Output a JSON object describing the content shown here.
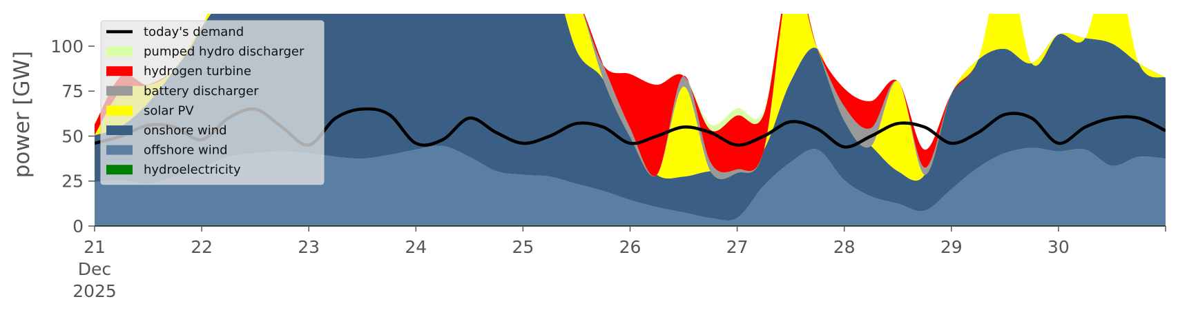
{
  "chart_data": {
    "type": "area",
    "ylabel": "power [GW]",
    "xlabel": "",
    "title": "",
    "ylim": [
      0,
      118
    ],
    "xlim": [
      "2025-12-21T00:00",
      "2025-12-31T00:00"
    ],
    "yticks": [
      0,
      25,
      50,
      75,
      100
    ],
    "ytick_labels": [
      "0",
      "25",
      "50",
      "75",
      "100"
    ],
    "xticks": [
      "2025-12-21",
      "2025-12-22",
      "2025-12-23",
      "2025-12-24",
      "2025-12-25",
      "2025-12-26",
      "2025-12-27",
      "2025-12-28",
      "2025-12-29",
      "2025-12-30"
    ],
    "xtick_labels": [
      "21\nDec\n2025",
      "22",
      "23",
      "24",
      "25",
      "26",
      "27",
      "28",
      "29",
      "30"
    ],
    "grid": false,
    "legend_position": "top-left",
    "x": [
      "2025-12-21T00:00",
      "2025-12-21T06:00",
      "2025-12-21T12:00",
      "2025-12-21T18:00",
      "2025-12-22T00:00",
      "2025-12-22T06:00",
      "2025-12-22T12:00",
      "2025-12-22T18:00",
      "2025-12-23T00:00",
      "2025-12-23T06:00",
      "2025-12-23T12:00",
      "2025-12-23T18:00",
      "2025-12-24T00:00",
      "2025-12-24T06:00",
      "2025-12-24T12:00",
      "2025-12-24T18:00",
      "2025-12-25T00:00",
      "2025-12-25T06:00",
      "2025-12-25T12:00",
      "2025-12-25T18:00",
      "2025-12-26T00:00",
      "2025-12-26T06:00",
      "2025-12-26T12:00",
      "2025-12-26T18:00",
      "2025-12-27T00:00",
      "2025-12-27T06:00",
      "2025-12-27T12:00",
      "2025-12-27T18:00",
      "2025-12-28T00:00",
      "2025-12-28T06:00",
      "2025-12-28T12:00",
      "2025-12-28T18:00",
      "2025-12-29T00:00",
      "2025-12-29T06:00",
      "2025-12-29T12:00",
      "2025-12-29T18:00",
      "2025-12-30T00:00",
      "2025-12-30T06:00",
      "2025-12-30T12:00",
      "2025-12-30T18:00",
      "2025-12-31T00:00"
    ],
    "series": [
      {
        "name": "hydroelectricity",
        "color": "#008000",
        "values": [
          0.5,
          0.5,
          0.5,
          0.5,
          0.5,
          0.5,
          0.5,
          0.5,
          0.5,
          0.5,
          0.5,
          0.5,
          0.5,
          0.5,
          0.5,
          0.5,
          0.5,
          0.5,
          0.5,
          0.5,
          0.5,
          0.5,
          0.5,
          0.5,
          0.5,
          0.5,
          0.5,
          0.5,
          0.5,
          0.5,
          0.5,
          0.5,
          0.5,
          0.5,
          0.5,
          0.5,
          0.5,
          0.5,
          0.5,
          0.5,
          0.5
        ]
      },
      {
        "name": "offshore wind",
        "color": "#5B7FA3",
        "values": [
          24,
          25,
          23,
          27,
          32,
          38,
          40,
          41,
          40,
          38,
          37,
          39,
          42,
          44,
          38,
          30,
          28,
          27,
          23,
          19,
          14,
          10,
          7,
          4,
          4,
          22,
          35,
          42,
          25,
          16,
          12,
          8,
          20,
          32,
          40,
          43,
          41,
          42,
          33,
          38,
          37
        ]
      },
      {
        "name": "onshore wind",
        "color": "#3B5F84",
        "values": [
          26,
          30,
          45,
          60,
          78,
          92,
          100,
          105,
          115,
          125,
          140,
          125,
          112,
          104,
          118,
          115,
          125,
          117,
          74,
          62,
          35,
          18,
          20,
          26,
          25,
          20,
          45,
          56,
          33,
          28,
          18,
          20,
          53,
          60,
          58,
          47,
          65,
          62,
          68,
          52,
          45
        ]
      },
      {
        "name": "solar PV",
        "color": "#FFFF00",
        "values": [
          0,
          20,
          10,
          0,
          0,
          15,
          0,
          0,
          0,
          10,
          0,
          0,
          0,
          0,
          15,
          0,
          0,
          0,
          30,
          0,
          0,
          0,
          50,
          0,
          0,
          0,
          60,
          0,
          0,
          0,
          50,
          0,
          0,
          0,
          50,
          0,
          0,
          0,
          50,
          0,
          0
        ]
      },
      {
        "name": "battery discharger",
        "color": "#999999",
        "values": [
          0,
          0,
          0,
          0,
          0,
          0,
          0,
          0,
          0,
          0,
          0,
          0,
          0,
          0,
          0,
          0,
          0,
          0,
          0,
          8,
          5,
          0,
          6,
          5,
          2,
          0,
          0,
          0,
          8,
          10,
          0,
          4,
          0,
          0,
          0,
          0,
          0,
          0,
          0,
          0,
          0
        ]
      },
      {
        "name": "hydrogen turbine",
        "color": "#FF0000",
        "values": [
          6,
          8,
          0,
          0,
          0,
          0,
          0,
          0,
          0,
          0,
          0,
          0,
          0,
          0,
          0,
          0,
          0,
          0,
          0,
          0,
          30,
          50,
          0,
          18,
          30,
          20,
          0,
          0,
          10,
          15,
          0,
          10,
          0,
          0,
          0,
          0,
          0,
          0,
          0,
          0,
          0
        ]
      },
      {
        "name": "pumped hydro discharger",
        "color": "#D9FFA6",
        "values": [
          0,
          1,
          0,
          0,
          0,
          0,
          0,
          0,
          0,
          0,
          0,
          0,
          0,
          0,
          0,
          0,
          0,
          0,
          0,
          0,
          0,
          0,
          0,
          3,
          4,
          2,
          0,
          0,
          0,
          0,
          0,
          0,
          0,
          0,
          0,
          0,
          0,
          0,
          0,
          0,
          0
        ]
      }
    ],
    "demand": {
      "name": "today's demand",
      "color": "#000000",
      "values": [
        46,
        50,
        56,
        55,
        48,
        60,
        65,
        55,
        45,
        60,
        65,
        62,
        46,
        48,
        60,
        52,
        46,
        50,
        57,
        55,
        46,
        50,
        55,
        52,
        45,
        50,
        58,
        54,
        44,
        50,
        57,
        55,
        46,
        52,
        62,
        60,
        46,
        55,
        60,
        60,
        53
      ]
    },
    "legend_order": [
      "today's demand",
      "pumped hydro discharger",
      "hydrogen turbine",
      "battery discharger",
      "solar PV",
      "onshore wind",
      "offshore wind",
      "hydroelectricity"
    ]
  }
}
